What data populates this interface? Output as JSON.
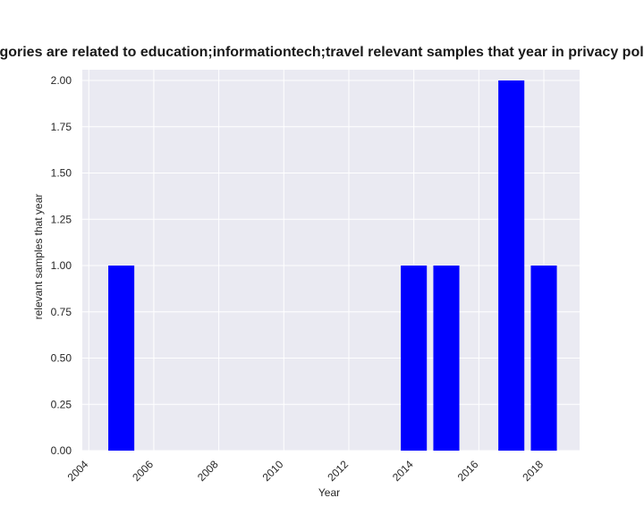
{
  "chart_data": {
    "type": "bar",
    "title": "Categories are related to education;informationtech;travel relevant samples that year in privacy policies",
    "xlabel": "Year",
    "ylabel": "relevant samples that year",
    "x": [
      2005,
      2014,
      2015,
      2017,
      2018
    ],
    "values": [
      1,
      1,
      1,
      2,
      1
    ],
    "xlim": [
      2003.8,
      2019.1
    ],
    "ylim": [
      0,
      2.0
    ],
    "xticks": [
      "2004",
      "2006",
      "2008",
      "2010",
      "2012",
      "2014",
      "2016",
      "2018"
    ],
    "yticks": [
      "0.00",
      "0.25",
      "0.50",
      "0.75",
      "1.00",
      "1.25",
      "1.50",
      "1.75",
      "2.00"
    ],
    "bar_color": "#0000ff",
    "plot_background": "#eaeaf2",
    "grid": true,
    "legend": "none"
  }
}
